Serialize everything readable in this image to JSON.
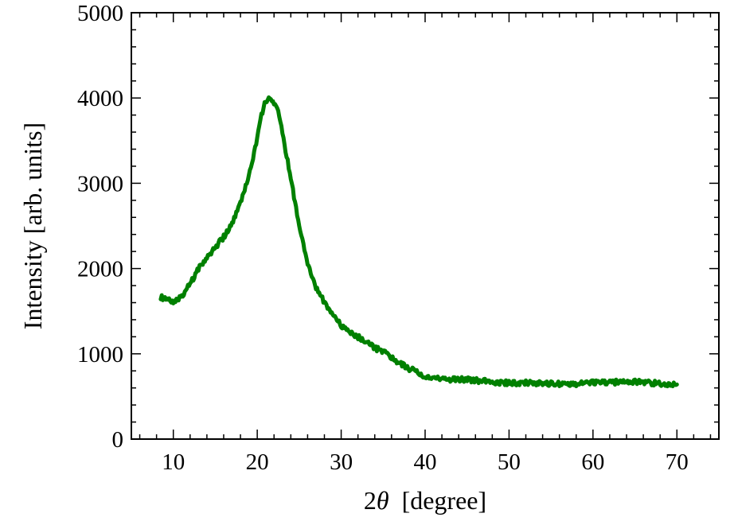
{
  "chart_data": {
    "type": "line",
    "title": "",
    "xlabel": "2θ  [degree]",
    "xlabel_parts": {
      "prefix": "2",
      "symbol": "θ",
      "suffix": "  [degree]"
    },
    "ylabel": "Intensity [arb. units]",
    "xlim": [
      5,
      75
    ],
    "ylim": [
      0,
      5000
    ],
    "x_ticks": [
      10,
      20,
      30,
      40,
      50,
      60,
      70
    ],
    "y_ticks": [
      0,
      1000,
      2000,
      3000,
      4000,
      5000
    ],
    "x_minor_step": 2,
    "y_minor_step": 200,
    "grid": false,
    "legend": "none",
    "series": [
      {
        "color": "#008000",
        "x": [
          8.5,
          9,
          10,
          11,
          12,
          13,
          14,
          15,
          16,
          17,
          18,
          19,
          20,
          20.5,
          21,
          21.5,
          22,
          22.5,
          23,
          24,
          25,
          26,
          27,
          28,
          29,
          30,
          31,
          32,
          33,
          34,
          35,
          36,
          37,
          38,
          39,
          40,
          41,
          42,
          44,
          46,
          48,
          50,
          52,
          54,
          56,
          58,
          60,
          62,
          64,
          66,
          68,
          70
        ],
        "y": [
          1670,
          1640,
          1610,
          1680,
          1820,
          2000,
          2130,
          2250,
          2370,
          2520,
          2760,
          3080,
          3520,
          3800,
          3970,
          3990,
          3940,
          3830,
          3580,
          3060,
          2480,
          2070,
          1780,
          1600,
          1470,
          1330,
          1250,
          1200,
          1140,
          1070,
          1020,
          960,
          890,
          830,
          790,
          730,
          710,
          700,
          700,
          690,
          670,
          660,
          660,
          650,
          650,
          650,
          660,
          660,
          680,
          670,
          650,
          640
        ]
      }
    ]
  }
}
